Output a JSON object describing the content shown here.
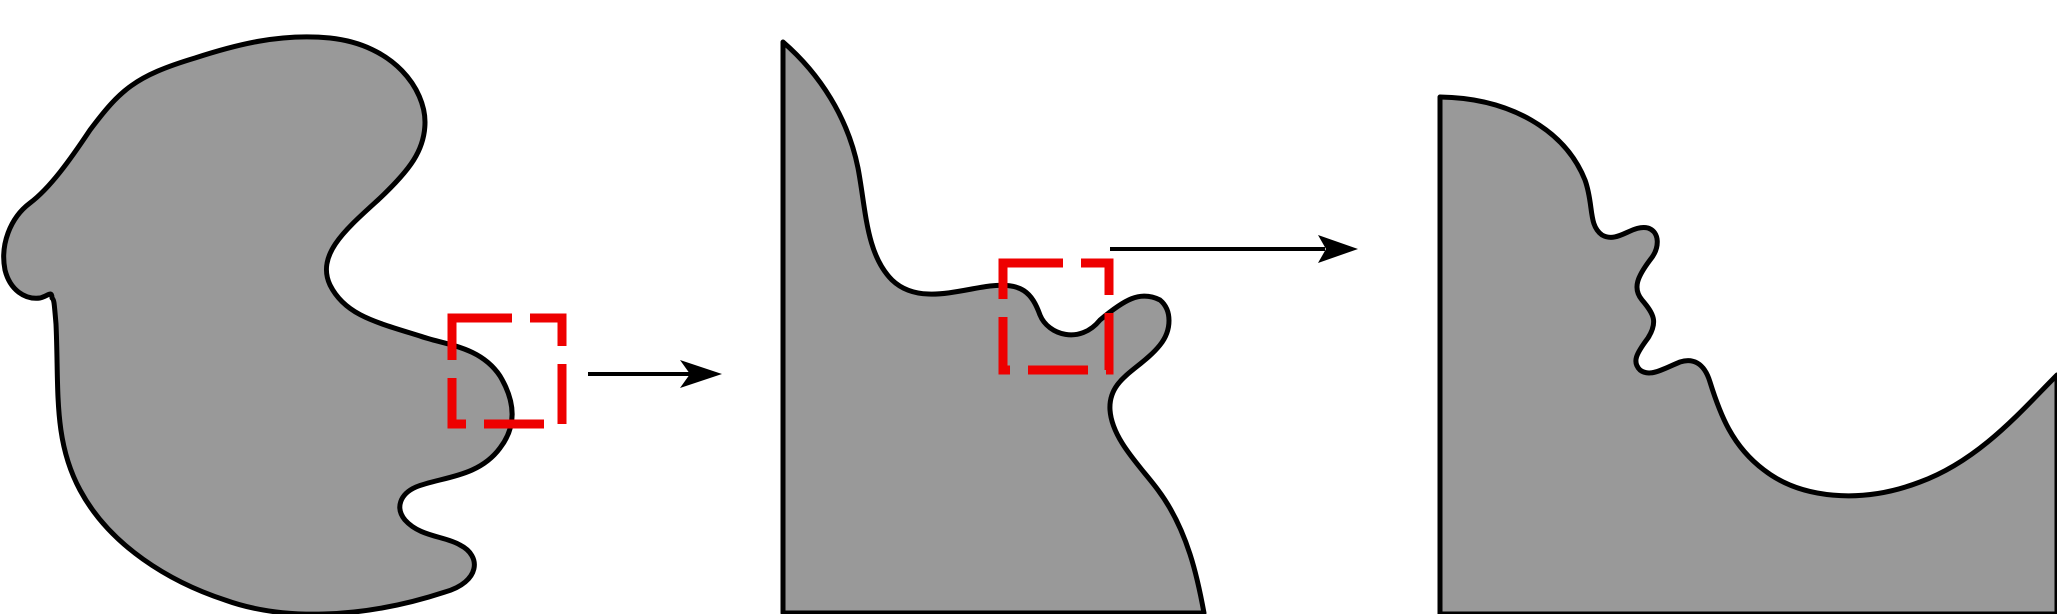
{
  "diagram": {
    "panels": [
      {
        "name": "full-shape",
        "zoom_box": true
      },
      {
        "name": "zoom-level-1",
        "zoom_box": true
      },
      {
        "name": "zoom-level-2",
        "zoom_box": false
      }
    ],
    "arrows": 2
  },
  "colors": {
    "shape_fill": "#999999",
    "outline": "#000000",
    "zoom_box": "#ee0000",
    "background": "#ffffff"
  }
}
